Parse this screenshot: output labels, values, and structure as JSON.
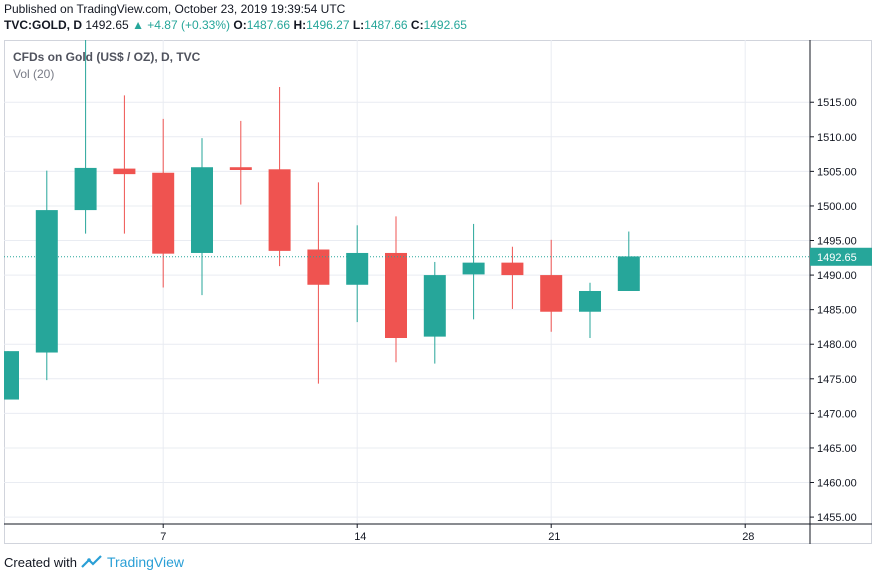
{
  "header": {
    "published": "Published on TradingView.com, October 23, 2019 19:39:54 UTC",
    "symbol": "TVC:GOLD, D",
    "last": "1492.65",
    "change": "▲ +4.87 (+0.33%)",
    "open_label": "O:",
    "open": "1487.66",
    "high_label": "H:",
    "high": "1496.27",
    "low_label": "L:",
    "low": "1487.66",
    "close_label": "C:",
    "close": "1492.65"
  },
  "legend": {
    "title": "CFDs on Gold (US$ / OZ), D, TVC",
    "volume": "Vol (20)"
  },
  "footer": {
    "created_with": "Created with",
    "brand": "TradingView"
  },
  "colors": {
    "up": "#26a69a",
    "down": "#ef5350",
    "grid": "#e9ecf2",
    "axis": "#131722",
    "price_line": "#26a69a"
  },
  "chart_data": {
    "type": "candlestick",
    "ylim": [
      1454,
      1524
    ],
    "y_ticks": [
      "1455.00",
      "1460.00",
      "1465.00",
      "1470.00",
      "1475.00",
      "1480.00",
      "1485.00",
      "1490.00",
      "1495.00",
      "1500.00",
      "1505.00",
      "1510.00",
      "1515.00"
    ],
    "x_tick_labels": [
      "7",
      "14",
      "21",
      "28"
    ],
    "last_price": "1492.65",
    "grid": true,
    "candles": [
      {
        "date": "Oct 1",
        "open": 1472.0,
        "high": 1479.0,
        "low": 1472.0,
        "close": 1479.0
      },
      {
        "date": "Oct 2",
        "open": 1478.8,
        "high": 1505.1,
        "low": 1474.8,
        "close": 1499.4
      },
      {
        "date": "Oct 3",
        "open": 1499.4,
        "high": 1524.0,
        "low": 1496.0,
        "close": 1505.5
      },
      {
        "date": "Oct 4",
        "open": 1505.4,
        "high": 1516.0,
        "low": 1496.0,
        "close": 1504.6
      },
      {
        "date": "Oct 7",
        "open": 1504.8,
        "high": 1512.6,
        "low": 1488.2,
        "close": 1493.1
      },
      {
        "date": "Oct 8",
        "open": 1493.2,
        "high": 1509.8,
        "low": 1487.1,
        "close": 1505.6
      },
      {
        "date": "Oct 9",
        "open": 1505.6,
        "high": 1512.3,
        "low": 1500.2,
        "close": 1505.2
      },
      {
        "date": "Oct 10",
        "open": 1505.3,
        "high": 1517.2,
        "low": 1491.3,
        "close": 1493.5
      },
      {
        "date": "Oct 11",
        "open": 1493.7,
        "high": 1503.4,
        "low": 1474.3,
        "close": 1488.6
      },
      {
        "date": "Oct 14",
        "open": 1488.6,
        "high": 1497.2,
        "low": 1483.2,
        "close": 1493.2
      },
      {
        "date": "Oct 15",
        "open": 1493.2,
        "high": 1498.5,
        "low": 1477.4,
        "close": 1480.9
      },
      {
        "date": "Oct 16",
        "open": 1481.1,
        "high": 1491.9,
        "low": 1477.2,
        "close": 1490.0
      },
      {
        "date": "Oct 17",
        "open": 1490.1,
        "high": 1497.4,
        "low": 1483.6,
        "close": 1491.8
      },
      {
        "date": "Oct 18",
        "open": 1491.8,
        "high": 1494.1,
        "low": 1485.1,
        "close": 1490.0
      },
      {
        "date": "Oct 21",
        "open": 1490.0,
        "high": 1495.1,
        "low": 1481.8,
        "close": 1484.7
      },
      {
        "date": "Oct 22",
        "open": 1484.7,
        "high": 1488.9,
        "low": 1480.9,
        "close": 1487.7
      },
      {
        "date": "Oct 23",
        "open": 1487.7,
        "high": 1496.3,
        "low": 1487.7,
        "close": 1492.7
      }
    ]
  }
}
